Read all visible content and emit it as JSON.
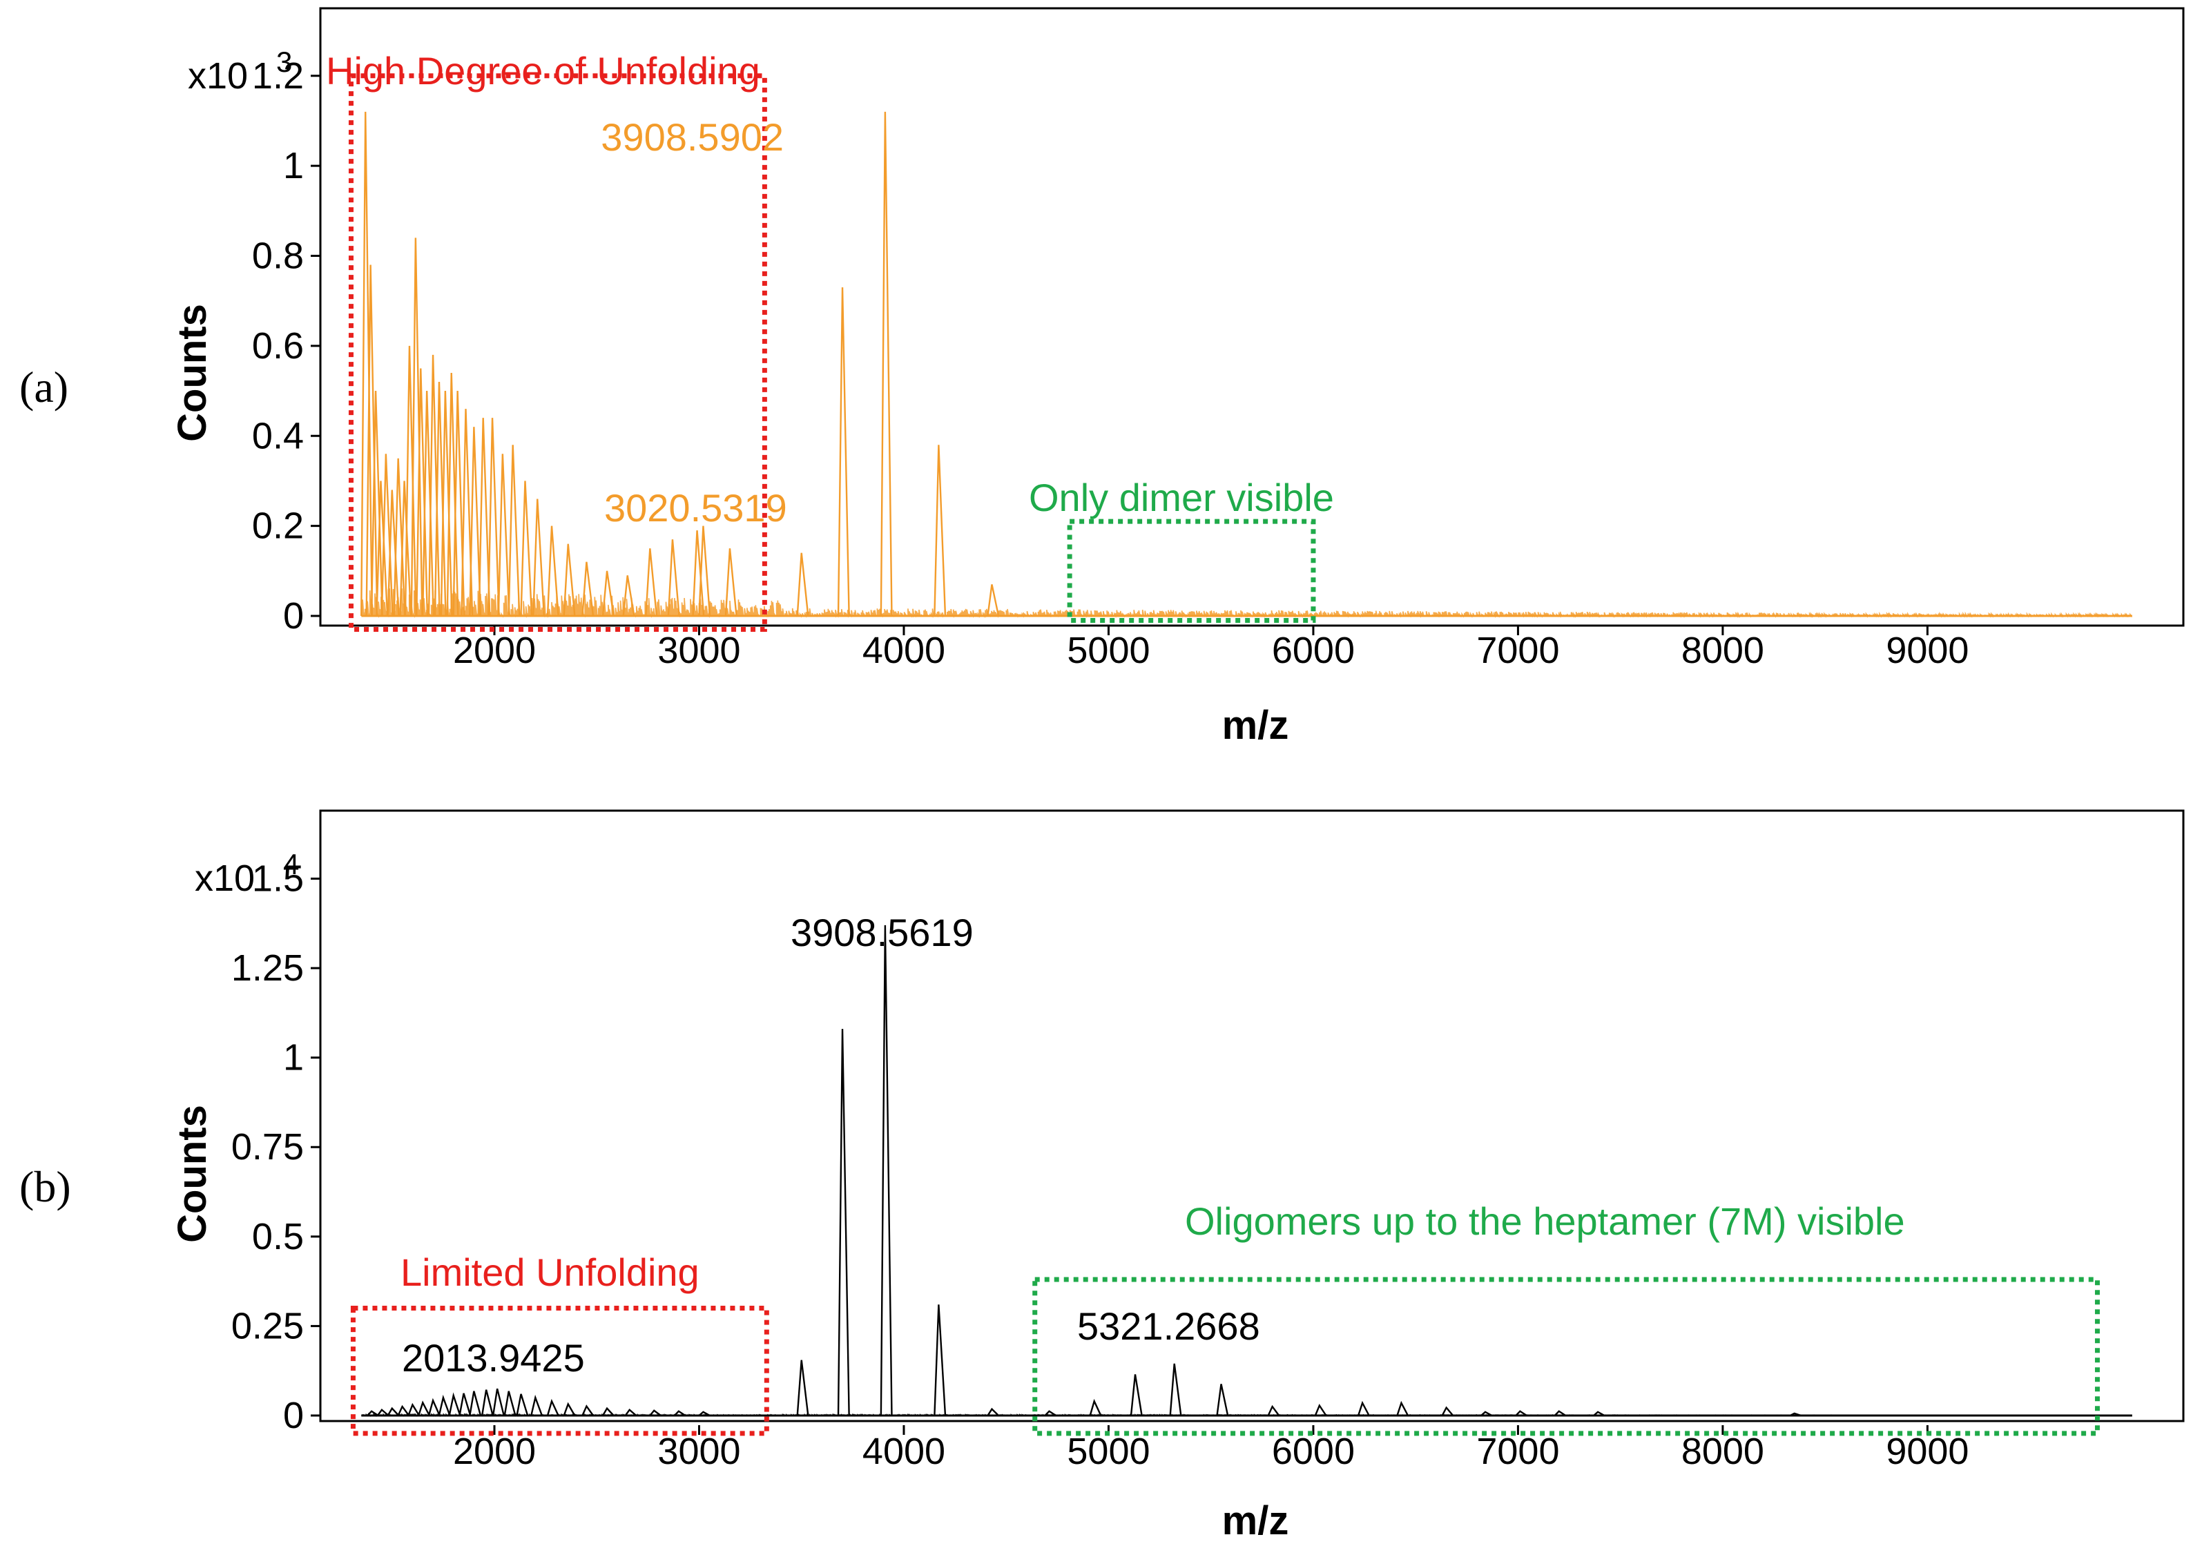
{
  "colors": {
    "orange": "#f39c2b",
    "red": "#e8201d",
    "green": "#1faa4a",
    "black": "#000000"
  },
  "chart_data": [
    {
      "panel_label": "(a)",
      "type": "line",
      "xlabel": "m/z",
      "ylabel": "Counts",
      "multiplier": "x10",
      "multiplier_exp": "3",
      "xlim": [
        1150,
        10250
      ],
      "ylim": [
        0,
        1.35
      ],
      "xticks": [
        2000,
        3000,
        4000,
        5000,
        6000,
        7000,
        8000,
        9000
      ],
      "xtick_labels": [
        "2000",
        "3000",
        "4000",
        "5000",
        "6000",
        "7000",
        "8000",
        "9000"
      ],
      "yticks": [
        0,
        0.2,
        0.4,
        0.6,
        0.8,
        1,
        1.2
      ],
      "ytick_labels": [
        "0",
        "0.2",
        "0.4",
        "0.6",
        "0.8",
        "1",
        "1.2"
      ],
      "series_color": "#f39c2b",
      "peaks": [
        [
          1370,
          1.12
        ],
        [
          1395,
          0.78
        ],
        [
          1420,
          0.5
        ],
        [
          1445,
          0.3
        ],
        [
          1470,
          0.36
        ],
        [
          1500,
          0.28
        ],
        [
          1530,
          0.35
        ],
        [
          1560,
          0.3
        ],
        [
          1585,
          0.6
        ],
        [
          1615,
          0.84
        ],
        [
          1640,
          0.55
        ],
        [
          1670,
          0.5
        ],
        [
          1700,
          0.58
        ],
        [
          1730,
          0.52
        ],
        [
          1760,
          0.5
        ],
        [
          1790,
          0.54
        ],
        [
          1820,
          0.5
        ],
        [
          1860,
          0.46
        ],
        [
          1900,
          0.42
        ],
        [
          1945,
          0.44
        ],
        [
          1990,
          0.44
        ],
        [
          2040,
          0.36
        ],
        [
          2090,
          0.38
        ],
        [
          2150,
          0.3
        ],
        [
          2210,
          0.26
        ],
        [
          2280,
          0.2
        ],
        [
          2360,
          0.16
        ],
        [
          2450,
          0.12
        ],
        [
          2550,
          0.1
        ],
        [
          2650,
          0.09
        ],
        [
          2760,
          0.15
        ],
        [
          2870,
          0.17
        ],
        [
          2990,
          0.19
        ],
        [
          3020,
          0.2
        ],
        [
          3150,
          0.15
        ],
        [
          3500,
          0.14
        ],
        [
          3700,
          0.73
        ],
        [
          3908.6,
          1.12
        ],
        [
          4170,
          0.38
        ],
        [
          4430,
          0.07
        ]
      ],
      "annotations": [
        {
          "text": "3908.5902",
          "x": 3908.6,
          "y": 1.12,
          "color": "#f39c2b"
        },
        {
          "text": "3020.5319",
          "x": 3020.5,
          "y": 0.2,
          "color": "#f39c2b"
        }
      ],
      "regions": [
        {
          "label": "High Degree of Unfolding",
          "x_range": [
            1300,
            3320
          ],
          "y_range": [
            -0.03,
            1.2
          ],
          "color": "#e8201d"
        },
        {
          "label": "Only dimer visible",
          "x_range": [
            4810,
            6000
          ],
          "y_range": [
            -0.01,
            0.21
          ],
          "color": "#1faa4a"
        }
      ]
    },
    {
      "panel_label": "(b)",
      "type": "line",
      "xlabel": "m/z",
      "ylabel": "Counts",
      "multiplier": "x10",
      "multiplier_exp": "4",
      "xlim": [
        1150,
        10250
      ],
      "ylim": [
        0,
        1.69
      ],
      "xticks": [
        2000,
        3000,
        4000,
        5000,
        6000,
        7000,
        8000,
        9000
      ],
      "xtick_labels": [
        "2000",
        "3000",
        "4000",
        "5000",
        "6000",
        "7000",
        "8000",
        "9000"
      ],
      "yticks": [
        0,
        0.25,
        0.5,
        0.75,
        1,
        1.25,
        1.5
      ],
      "ytick_labels": [
        "0",
        "0.25",
        "0.5",
        "0.75",
        "1",
        "1.25",
        "1.5"
      ],
      "series_color": "#000000",
      "peaks": [
        [
          1400,
          0.012
        ],
        [
          1450,
          0.016
        ],
        [
          1500,
          0.02
        ],
        [
          1550,
          0.025
        ],
        [
          1600,
          0.03
        ],
        [
          1650,
          0.036
        ],
        [
          1700,
          0.042
        ],
        [
          1750,
          0.05
        ],
        [
          1800,
          0.056
        ],
        [
          1850,
          0.062
        ],
        [
          1900,
          0.068
        ],
        [
          1960,
          0.072
        ],
        [
          2013.9,
          0.075
        ],
        [
          2070,
          0.068
        ],
        [
          2130,
          0.06
        ],
        [
          2200,
          0.05
        ],
        [
          2280,
          0.04
        ],
        [
          2360,
          0.032
        ],
        [
          2450,
          0.026
        ],
        [
          2550,
          0.02
        ],
        [
          2660,
          0.016
        ],
        [
          2780,
          0.014
        ],
        [
          2900,
          0.012
        ],
        [
          3020,
          0.01
        ],
        [
          3500,
          0.155
        ],
        [
          3700,
          1.08
        ],
        [
          3908.6,
          1.37
        ],
        [
          4170,
          0.31
        ],
        [
          4430,
          0.018
        ],
        [
          4710,
          0.012
        ],
        [
          4930,
          0.04
        ],
        [
          5130,
          0.115
        ],
        [
          5321.3,
          0.145
        ],
        [
          5550,
          0.088
        ],
        [
          5800,
          0.025
        ],
        [
          6030,
          0.028
        ],
        [
          6240,
          0.035
        ],
        [
          6430,
          0.035
        ],
        [
          6650,
          0.022
        ],
        [
          6840,
          0.01
        ],
        [
          7010,
          0.012
        ],
        [
          7200,
          0.012
        ],
        [
          7390,
          0.01
        ],
        [
          8350,
          0.006
        ]
      ],
      "annotations": [
        {
          "text": "3908.5619",
          "x": 3908.6,
          "y": 1.37,
          "color": "#000000"
        },
        {
          "text": "2013.9425",
          "x": 2013.9,
          "y": 0.075,
          "color": "#000000"
        },
        {
          "text": "5321.2668",
          "x": 5321.3,
          "y": 0.145,
          "color": "#000000"
        }
      ],
      "regions": [
        {
          "label": "Limited Unfolding",
          "x_range": [
            1310,
            3330
          ],
          "y_range": [
            -0.05,
            0.3
          ],
          "color": "#e8201d"
        },
        {
          "label": "Oligomers up to the heptamer (7M) visible",
          "x_range": [
            4640,
            9830
          ],
          "y_range": [
            -0.05,
            0.38
          ],
          "color": "#1faa4a"
        }
      ]
    }
  ]
}
